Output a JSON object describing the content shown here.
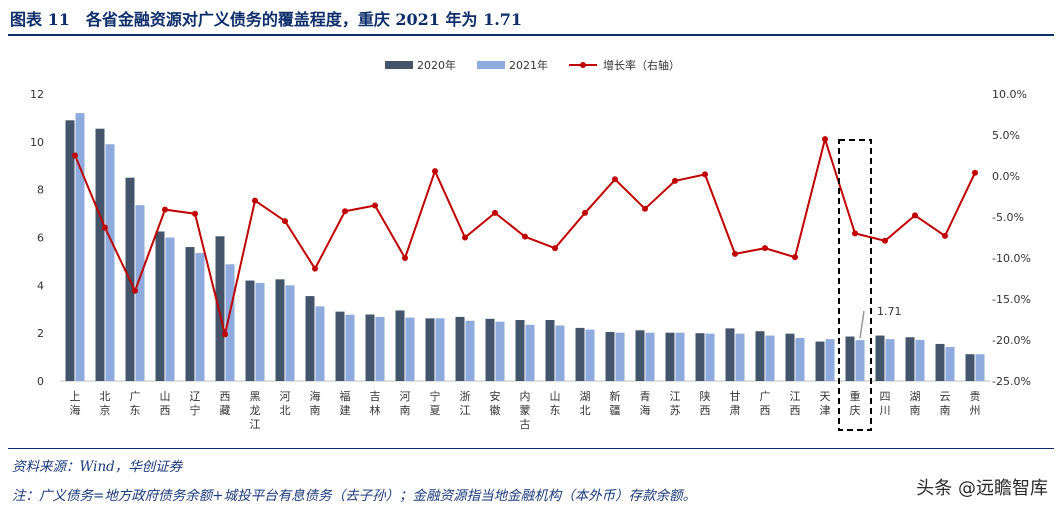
{
  "header": {
    "title": "图表 11　各省金融资源对广义债务的覆盖程度，重庆 2021 年为 1.71"
  },
  "footer": {
    "source": "资料来源：Wind，华创证券",
    "note": "注：广义债务=地方政府债务余额+城投平台有息债务（去子孙）；金融资源指当地金融机构（本外币）存款余额。",
    "watermark": "头条 @远瞻智库"
  },
  "chart_data": {
    "type": "bar",
    "categories": [
      "上海",
      "北京",
      "广东",
      "山西",
      "辽宁",
      "西藏",
      "黑龙江",
      "河北",
      "海南",
      "福建",
      "吉林",
      "河南",
      "宁夏",
      "浙江",
      "安徽",
      "内蒙古",
      "山东",
      "湖北",
      "新疆",
      "青海",
      "江苏",
      "陕西",
      "甘肃",
      "广西",
      "江西",
      "天津",
      "重庆",
      "四川",
      "湖南",
      "云南",
      "贵州"
    ],
    "series": [
      {
        "name": "2020年",
        "kind": "bar",
        "axis": "left",
        "color": "#44546a",
        "values": [
          10.9,
          10.55,
          8.5,
          6.25,
          5.6,
          6.05,
          4.2,
          4.25,
          3.55,
          2.9,
          2.78,
          2.95,
          2.62,
          2.68,
          2.6,
          2.55,
          2.55,
          2.22,
          2.05,
          2.12,
          2.02,
          2.0,
          2.2,
          2.08,
          1.98,
          1.65,
          1.86,
          1.9,
          1.83,
          1.55,
          1.12
        ]
      },
      {
        "name": "2021年",
        "kind": "bar",
        "axis": "left",
        "color": "#8faadc",
        "values": [
          11.2,
          9.9,
          7.35,
          6.0,
          5.35,
          4.88,
          4.1,
          4.0,
          3.12,
          2.77,
          2.68,
          2.65,
          2.62,
          2.52,
          2.48,
          2.35,
          2.32,
          2.15,
          2.02,
          2.02,
          2.02,
          1.98,
          1.98,
          1.9,
          1.8,
          1.75,
          1.71,
          1.75,
          1.72,
          1.42,
          1.12
        ]
      },
      {
        "name": "增长率（右轴）",
        "kind": "line",
        "axis": "right",
        "color": "#c00000",
        "values": [
          2.5,
          -6.3,
          -14.0,
          -4.1,
          -4.6,
          -19.3,
          -3.0,
          -5.5,
          -11.3,
          -4.3,
          -3.6,
          -10.0,
          0.6,
          -7.5,
          -4.5,
          -7.4,
          -8.8,
          -4.5,
          -0.4,
          -4.0,
          -0.6,
          0.2,
          -9.5,
          -8.8,
          -9.9,
          4.5,
          -7.0,
          -7.9,
          -4.8,
          -7.3,
          0.4
        ]
      }
    ],
    "left_axis": {
      "min": 0,
      "max": 12,
      "ticks": [
        "0",
        "2",
        "4",
        "6",
        "8",
        "10",
        "12"
      ]
    },
    "right_axis": {
      "min": -25,
      "max": 10,
      "ticks": [
        "-25.0%",
        "-20.0%",
        "-15.0%",
        "-10.0%",
        "-5.0%",
        "0.0%",
        "5.0%",
        "10.0%"
      ]
    },
    "legend": {
      "position": "top-center",
      "items": [
        "2020年",
        "2021年",
        "增长率（右轴）"
      ]
    },
    "annotations": [
      {
        "category": "重庆",
        "text": "1.71",
        "style": "dashed-box"
      }
    ],
    "grid": false
  }
}
